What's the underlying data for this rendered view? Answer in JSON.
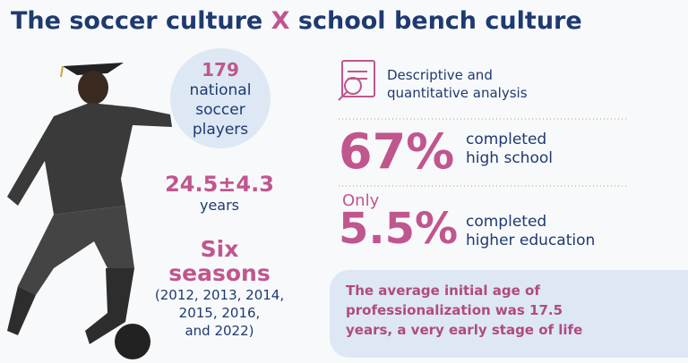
{
  "header": {
    "title_parts": [
      "The soccer culture",
      "X",
      "school bench culture"
    ]
  },
  "left": {
    "count": "179",
    "count_lines": [
      "national",
      "soccer",
      "players"
    ],
    "age": "24.5±4.3",
    "age_unit": "years",
    "seasons_title": "Six",
    "seasons_subtitle": "seasons",
    "seasons_lines": [
      "(2012, 2013, 2014,",
      "2015, 2016,",
      "and 2022)"
    ]
  },
  "right": {
    "method_lines": [
      "Descriptive and",
      "quantitative analysis"
    ],
    "stat1": {
      "value": "67%",
      "lines": [
        "completed",
        "high school"
      ]
    },
    "stat2": {
      "prefix": "Only",
      "value": "5.5%",
      "lines": [
        "completed",
        "higher education"
      ]
    },
    "note_lines": [
      "The average initial age of",
      "professionalization was 17.5",
      "years, a very early stage of life"
    ]
  }
}
